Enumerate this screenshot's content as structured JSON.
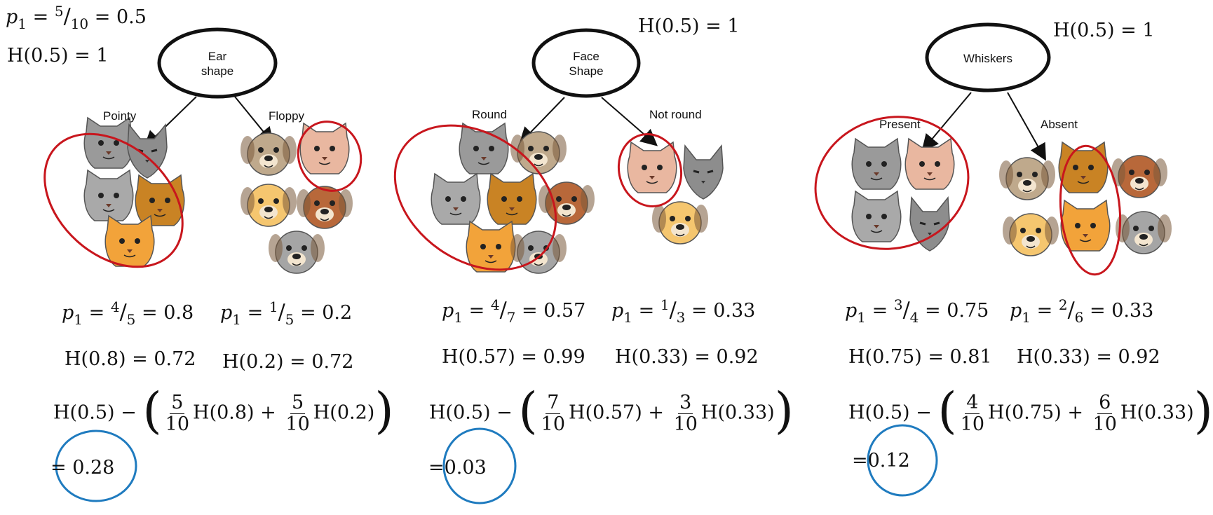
{
  "root": {
    "p1_label": "p",
    "p1_sub": "1",
    "p1_eq": "=",
    "p1_num": "5",
    "p1_den": "10",
    "p1_value": "= 0.5",
    "h_root": "H(0.5) = 1"
  },
  "panels": [
    {
      "node_line1": "Ear",
      "node_line2": "shape",
      "header_h": "",
      "left_branch": "Pointy",
      "right_branch": "Floppy",
      "left_p_num": "4",
      "left_p_den": "5",
      "left_p_value": "= 0.8",
      "right_p_num": "1",
      "right_p_den": "5",
      "right_p_value": "= 0.2",
      "left_h": "H(0.8) = 0.72",
      "right_h": "H(0.2) = 0.72",
      "gain_prefix": "H(0.5) −",
      "w_left_num": "5",
      "w_left_den": "10",
      "h_left_term": "H(0.8) +",
      "w_right_num": "5",
      "w_right_den": "10",
      "h_right_term": "H(0.2)",
      "result": "0.28"
    },
    {
      "node_line1": "Face",
      "node_line2": "Shape",
      "header_h": "H(0.5) = 1",
      "left_branch": "Round",
      "right_branch": "Not round",
      "left_p_num": "4",
      "left_p_den": "7",
      "left_p_value": "= 0.57",
      "right_p_num": "1",
      "right_p_den": "3",
      "right_p_value": "= 0.33",
      "left_h": "H(0.57) = 0.99",
      "right_h": "H(0.33) = 0.92",
      "gain_prefix": "H(0.5) −",
      "w_left_num": "7",
      "w_left_den": "10",
      "h_left_term": "H(0.57) +",
      "w_right_num": "3",
      "w_right_den": "10",
      "h_right_term": "H(0.33)",
      "result": "0.03"
    },
    {
      "node_line1": "Whiskers",
      "node_line2": "",
      "header_h": "H(0.5) = 1",
      "left_branch": "Present",
      "right_branch": "Absent",
      "left_p_num": "3",
      "left_p_den": "4",
      "left_p_value": "= 0.75",
      "right_p_num": "2",
      "right_p_den": "6",
      "right_p_value": "= 0.33",
      "left_h": "H(0.75) = 0.81",
      "right_h": "H(0.33) = 0.92",
      "gain_prefix": "H(0.5) −",
      "w_left_num": "4",
      "w_left_den": "10",
      "h_left_term": "H(0.75) +",
      "w_right_num": "6",
      "w_right_den": "10",
      "h_right_term": "H(0.33)",
      "result": "0.12"
    }
  ],
  "colors": {
    "red_circle": "#c8161d",
    "blue_circle": "#1f7bbf",
    "gray_cat": "#9a9a9a",
    "orange_cat": "#c98324",
    "ginger_cat": "#f2a33a",
    "pink_cat": "#e9b7a0",
    "pug": "#bfa98c",
    "yellow_dog": "#f5c66f",
    "brown_dog": "#b8683a",
    "gray_dog": "#a5a5a5"
  },
  "icons": {
    "gray_cat": "gray-cat-icon",
    "gray_cat_angry": "gray-angry-cat-icon",
    "gray_cat_sitting": "gray-sitting-cat-icon",
    "orange_cat": "orange-cat-icon",
    "ginger_cat": "ginger-white-cat-icon",
    "pink_cat": "pink-cat-icon",
    "pug": "pug-dog-icon",
    "yellow_dog": "yellow-dog-icon",
    "brown_dog": "brown-dog-icon",
    "gray_dog": "gray-dog-icon"
  }
}
